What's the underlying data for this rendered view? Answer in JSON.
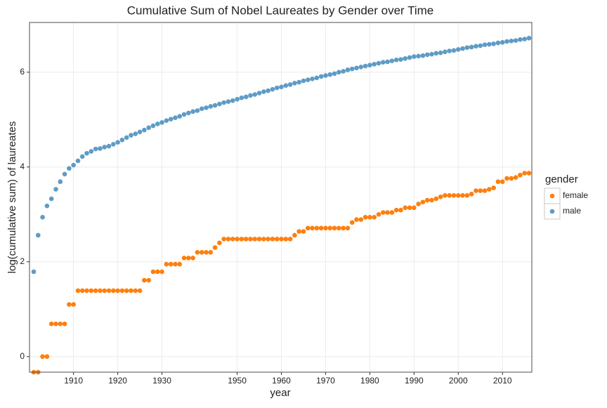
{
  "chart_data": {
    "type": "scatter",
    "title": "Cumulative Sum of Nobel Laureates by Gender over Time",
    "x_label": "year",
    "y_label": "log(cumulative sum) of laureates",
    "legend_title": "gender",
    "legend": "right",
    "grid": true,
    "categories": [
      null,
      null,
      null,
      null,
      null,
      null,
      null,
      null,
      null,
      "1910",
      null,
      null,
      null,
      null,
      null,
      null,
      null,
      null,
      null,
      "1920",
      null,
      null,
      null,
      null,
      null,
      null,
      null,
      null,
      null,
      "1930",
      null,
      null,
      null,
      null,
      null,
      null,
      null,
      null,
      null,
      null,
      null,
      null,
      null,
      null,
      null,
      null,
      "1950",
      null,
      null,
      null,
      null,
      null,
      null,
      null,
      null,
      null,
      "1960",
      null,
      null,
      null,
      null,
      null,
      null,
      null,
      null,
      null,
      "1970",
      null,
      null,
      null,
      null,
      null,
      null,
      null,
      null,
      null,
      "1980",
      null,
      null,
      null,
      null,
      null,
      null,
      null,
      null,
      null,
      "1990",
      null,
      null,
      null,
      null,
      null,
      null,
      null,
      null,
      null,
      "2000",
      null,
      null,
      null,
      null,
      null,
      null,
      null,
      null,
      null,
      "2010",
      null,
      null,
      null,
      null,
      null,
      null
    ],
    "series": [
      {
        "name": "female",
        "color": "#ff7f0e",
        "values": [
          -0.33,
          -0.33,
          0,
          0,
          0.69,
          0.69,
          0.69,
          0.69,
          1.1,
          1.1,
          1.39,
          1.39,
          1.39,
          1.39,
          1.39,
          1.39,
          1.39,
          1.39,
          1.39,
          1.39,
          1.39,
          1.39,
          1.39,
          1.39,
          1.39,
          1.61,
          1.61,
          1.79,
          1.79,
          1.79,
          1.95,
          1.95,
          1.95,
          1.95,
          2.08,
          2.08,
          2.08,
          2.2,
          2.2,
          2.2,
          2.2,
          2.3,
          2.4,
          2.48,
          2.48,
          2.48,
          2.48,
          2.48,
          2.48,
          2.48,
          2.48,
          2.48,
          2.48,
          2.48,
          2.48,
          2.48,
          2.48,
          2.48,
          2.48,
          2.56,
          2.64,
          2.64,
          2.71,
          2.71,
          2.71,
          2.71,
          2.71,
          2.71,
          2.71,
          2.71,
          2.71,
          2.71,
          2.83,
          2.89,
          2.89,
          2.94,
          2.94,
          2.94,
          3.0,
          3.04,
          3.04,
          3.04,
          3.09,
          3.09,
          3.14,
          3.14,
          3.14,
          3.22,
          3.26,
          3.3,
          3.3,
          3.33,
          3.37,
          3.4,
          3.4,
          3.4,
          3.4,
          3.4,
          3.4,
          3.43,
          3.5,
          3.5,
          3.5,
          3.53,
          3.56,
          3.69,
          3.69,
          3.76,
          3.76,
          3.78,
          3.83,
          3.87,
          3.87
        ]
      },
      {
        "name": "male",
        "color": "#5f9bc6",
        "values": [
          1.79,
          2.56,
          2.94,
          3.18,
          3.33,
          3.53,
          3.69,
          3.85,
          3.97,
          4.04,
          4.13,
          4.22,
          4.29,
          4.33,
          4.38,
          4.39,
          4.42,
          4.44,
          4.48,
          4.52,
          4.57,
          4.62,
          4.67,
          4.7,
          4.74,
          4.78,
          4.83,
          4.87,
          4.91,
          4.94,
          4.98,
          5.01,
          5.04,
          5.07,
          5.11,
          5.14,
          5.17,
          5.19,
          5.23,
          5.25,
          5.28,
          5.3,
          5.33,
          5.36,
          5.38,
          5.4,
          5.43,
          5.46,
          5.48,
          5.51,
          5.53,
          5.56,
          5.59,
          5.61,
          5.64,
          5.67,
          5.69,
          5.72,
          5.74,
          5.77,
          5.79,
          5.82,
          5.84,
          5.86,
          5.88,
          5.91,
          5.93,
          5.95,
          5.97,
          6.0,
          6.02,
          6.05,
          6.07,
          6.09,
          6.11,
          6.13,
          6.15,
          6.17,
          6.19,
          6.21,
          6.22,
          6.24,
          6.26,
          6.27,
          6.29,
          6.31,
          6.33,
          6.34,
          6.35,
          6.37,
          6.38,
          6.4,
          6.41,
          6.43,
          6.45,
          6.46,
          6.48,
          6.5,
          6.52,
          6.53,
          6.55,
          6.56,
          6.58,
          6.59,
          6.6,
          6.62,
          6.63,
          6.65,
          6.66,
          6.67,
          6.69,
          6.7,
          6.72
        ]
      }
    ],
    "ylim": [
      -0.33,
      7.05
    ],
    "yticks": [
      0,
      2,
      4,
      6
    ]
  }
}
